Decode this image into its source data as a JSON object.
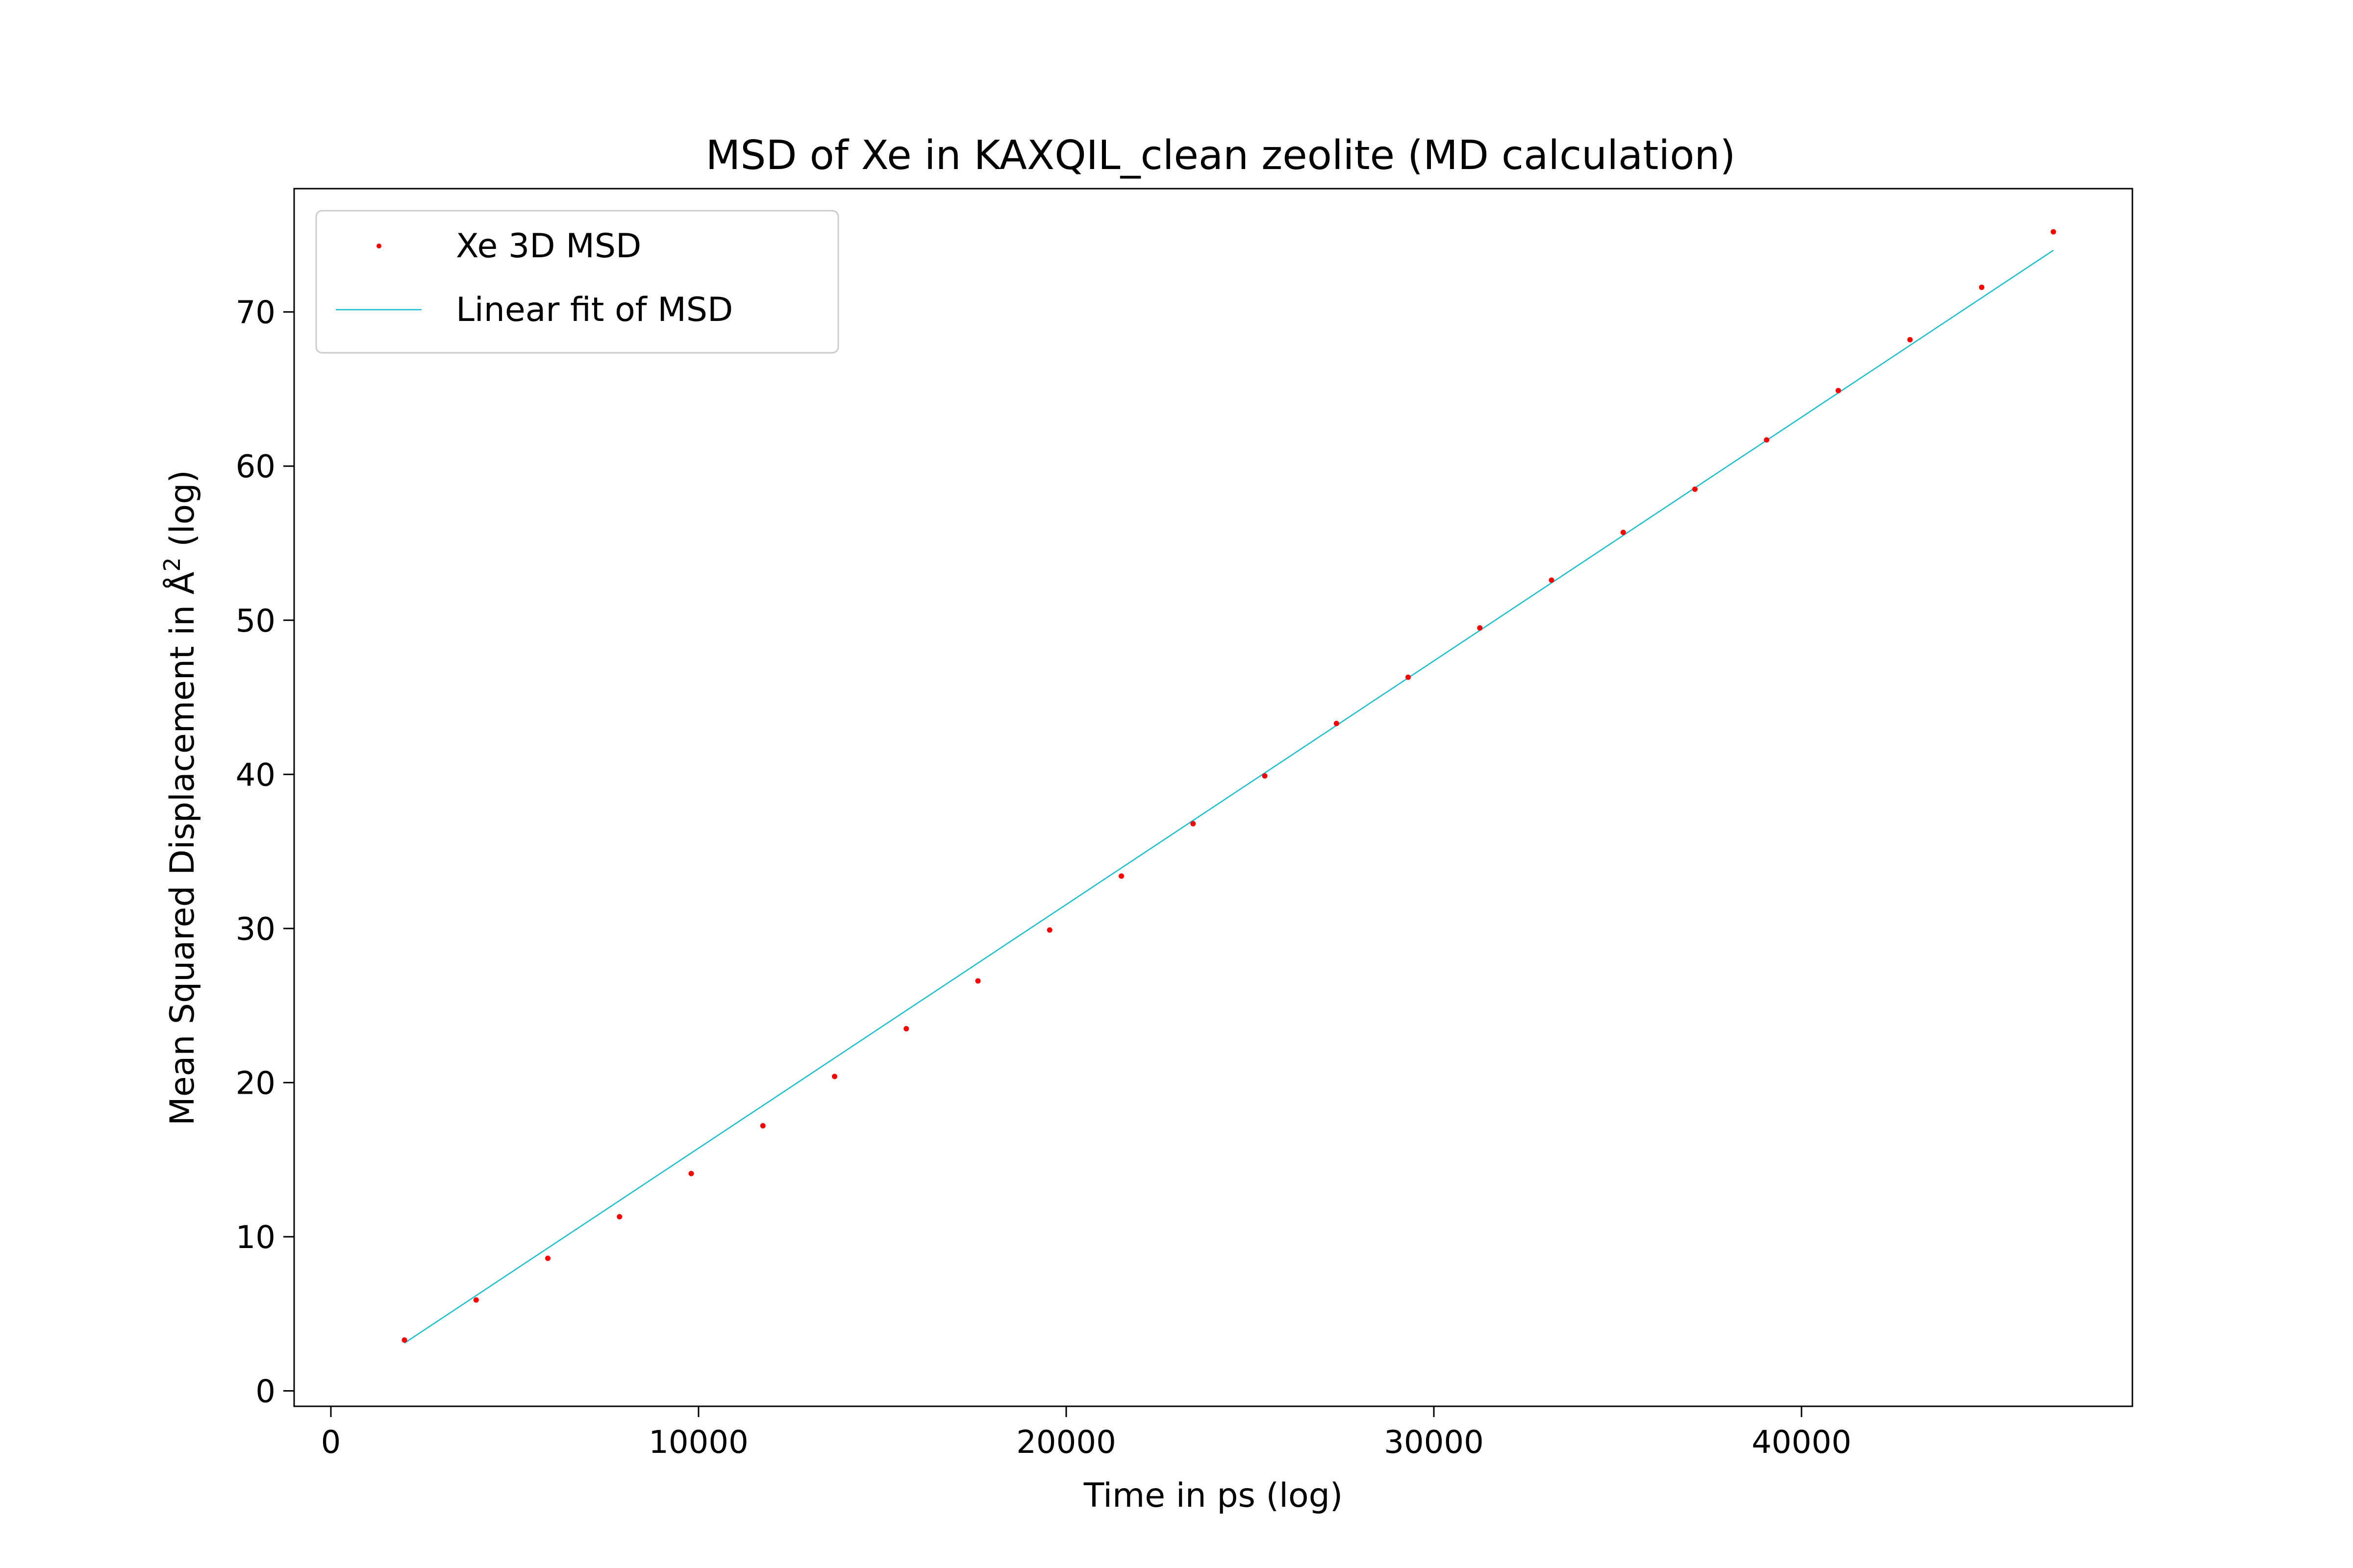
{
  "chart_data": {
    "type": "scatter",
    "title": "MSD of Xe in KAXQIL_clean zeolite (MD calculation)",
    "xlabel": "Time in ps (log)",
    "ylabel_prefix": "Mean Squared Displacement in Å",
    "ylabel_sup": "2",
    "ylabel_suffix": " (log)",
    "xlim": [
      -1000,
      49000
    ],
    "ylim": [
      -1,
      78
    ],
    "x_ticks": [
      0,
      10000,
      20000,
      30000,
      40000
    ],
    "x_tick_labels": [
      "0",
      "10000",
      "20000",
      "30000",
      "40000"
    ],
    "y_ticks": [
      0,
      10,
      20,
      30,
      40,
      50,
      60,
      70
    ],
    "y_tick_labels": [
      "0",
      "10",
      "20",
      "30",
      "40",
      "50",
      "60",
      "70"
    ],
    "grid": false,
    "legend_position": "top-left",
    "series": [
      {
        "name": "Xe 3D MSD",
        "kind": "points",
        "color": "#ff0000",
        "x": [
          2000,
          3950,
          5900,
          7850,
          9800,
          11750,
          13700,
          15650,
          17600,
          19550,
          21500,
          23450,
          25400,
          27350,
          29300,
          31250,
          33200,
          35150,
          37100,
          39050,
          41000,
          42950,
          44900,
          46850
        ],
        "y": [
          3.3,
          5.9,
          8.6,
          11.3,
          14.1,
          17.2,
          20.4,
          23.5,
          26.6,
          29.9,
          33.4,
          36.8,
          39.9,
          43.3,
          46.3,
          49.5,
          52.6,
          55.7,
          58.5,
          61.7,
          64.9,
          68.2,
          71.6,
          75.2
        ]
      },
      {
        "name": "Linear fit of MSD",
        "kind": "line",
        "color": "#17becf",
        "x": [
          2000,
          46850
        ],
        "y": [
          3.1,
          74.0
        ]
      }
    ]
  }
}
